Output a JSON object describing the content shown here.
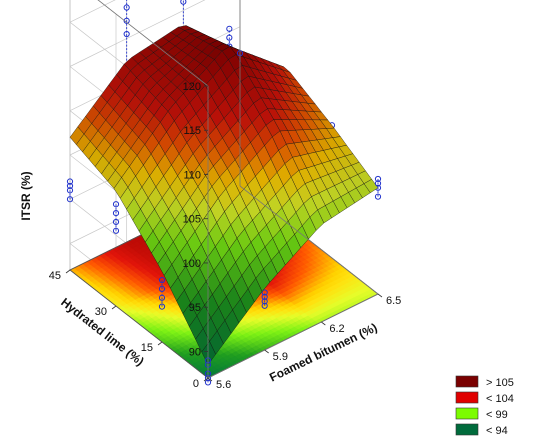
{
  "chart_data": {
    "type": "surface3d",
    "title": "",
    "x_axis": {
      "label": "Foamed bitumen (%)",
      "ticks": [
        "5.6",
        "5.9",
        "6.2",
        "6.5"
      ],
      "range": [
        5.6,
        6.5
      ]
    },
    "y_axis": {
      "label": "Hydrated lime (%)",
      "ticks": [
        "0",
        "15",
        "30",
        "45"
      ],
      "range": [
        0,
        45
      ]
    },
    "z_axis": {
      "label": "ITSR (%)",
      "ticks": [
        "90",
        "95",
        "100",
        "105",
        "110",
        "115",
        "120"
      ],
      "range": [
        87,
        120
      ]
    },
    "surface": {
      "grid_x": [
        5.6,
        5.9,
        6.2,
        6.5
      ],
      "grid_y": [
        0,
        15,
        30,
        45
      ],
      "z": [
        [
          88.5,
          94,
          98,
          99
        ],
        [
          95,
          101,
          105,
          102
        ],
        [
          100,
          106,
          110,
          104.5
        ],
        [
          102,
          107.5,
          108.5,
          101
        ]
      ]
    },
    "observations": [
      {
        "x": 5.6,
        "y": 0,
        "z": [
          86.5,
          87,
          87.5,
          88.5,
          89
        ]
      },
      {
        "x": 5.6,
        "y": 45,
        "z": [
          95,
          96,
          96.5,
          97
        ]
      },
      {
        "x": 5.6,
        "y": 15,
        "z": [
          91,
          92,
          93,
          94
        ]
      },
      {
        "x": 5.6,
        "y": 30,
        "z": [
          95.5,
          96.5,
          97.5,
          98.5
        ]
      },
      {
        "x": 6.5,
        "y": 45,
        "z": [
          99,
          100,
          101,
          102
        ]
      },
      {
        "x": 6.5,
        "y": 0,
        "z": [
          98,
          99,
          99.5,
          100
        ]
      },
      {
        "x": 6.5,
        "y": 15,
        "z": [
          99,
          100,
          101,
          102
        ]
      },
      {
        "x": 6.2,
        "y": 30,
        "z": [
          109,
          110,
          111,
          112
        ]
      },
      {
        "x": 5.9,
        "y": 45,
        "z": [
          110.5,
          112,
          113.5,
          115
        ]
      },
      {
        "x": 6.2,
        "y": 45,
        "z": [
          111,
          113,
          115,
          116.5,
          118
        ]
      },
      {
        "x": 5.9,
        "y": 0,
        "z": [
          92,
          92.5,
          93,
          93.5
        ]
      },
      {
        "x": 6.5,
        "y": 30,
        "z": [
          98,
          99,
          100,
          101
        ]
      }
    ],
    "legend": {
      "position": "bottom-right",
      "entries": [
        {
          "label": "> 105",
          "color": "#7a0000"
        },
        {
          "label": "< 104",
          "color": "#e00000"
        },
        {
          "label": "< 99",
          "color": "#7cfc00"
        },
        {
          "label": "< 94",
          "color": "#006b3c"
        }
      ]
    },
    "grid": true
  }
}
